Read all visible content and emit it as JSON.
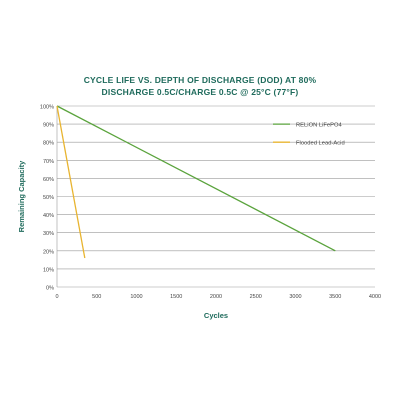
{
  "chart_data": {
    "type": "line",
    "title": "CYCLE LIFE VS. DEPTH OF DISCHARGE (DOD) AT 80%",
    "subtitle": "DISCHARGE 0.5C/CHARGE 0.5C @ 25°C (77°F)",
    "xlabel": "Cycles",
    "ylabel": "Remaining Capacity",
    "xlim": [
      0,
      4000
    ],
    "ylim": [
      0,
      100
    ],
    "x_ticks": [
      0,
      500,
      1000,
      1500,
      2000,
      2500,
      3000,
      3500,
      4000
    ],
    "y_ticks": [
      0,
      10,
      20,
      30,
      40,
      50,
      60,
      70,
      80,
      90,
      100
    ],
    "x_tick_labels": [
      "0",
      "500",
      "1000",
      "1500",
      "2000",
      "2500",
      "3000",
      "3500",
      "4000"
    ],
    "y_tick_labels": [
      "0%",
      "10%",
      "20%",
      "30%",
      "40%",
      "50%",
      "60%",
      "70%",
      "80%",
      "90%",
      "100%"
    ],
    "grid": "horizontal",
    "legend_position": "top-right",
    "series": [
      {
        "name": "RELiON LiFePO4",
        "color": "#5aa33c",
        "x": [
          0,
          3500
        ],
        "y": [
          100,
          20
        ]
      },
      {
        "name": "Flooded Lead-Acid",
        "color": "#e8b430",
        "x": [
          0,
          350
        ],
        "y": [
          100,
          16
        ]
      }
    ]
  }
}
